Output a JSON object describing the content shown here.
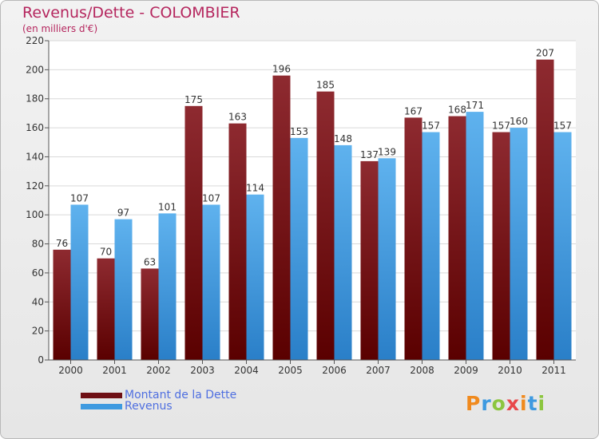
{
  "chart_data": {
    "type": "bar",
    "title": "Revenus/Dette - COLOMBIER",
    "subtitle": "(en milliers d'€)",
    "categories": [
      "2000",
      "2001",
      "2002",
      "2003",
      "2004",
      "2005",
      "2006",
      "2007",
      "2008",
      "2009",
      "2010",
      "2011"
    ],
    "series": [
      {
        "name": "Montant de la Dette",
        "values": [
          76,
          70,
          63,
          175,
          163,
          196,
          185,
          137,
          167,
          168,
          157,
          207
        ],
        "color": "#6e0f14"
      },
      {
        "name": "Revenus",
        "values": [
          107,
          97,
          101,
          107,
          114,
          153,
          148,
          139,
          157,
          171,
          160,
          157
        ],
        "color": "#3e9ae0"
      }
    ],
    "ylim": [
      0,
      220
    ],
    "yticks": [
      0,
      20,
      40,
      60,
      80,
      100,
      120,
      140,
      160,
      180,
      200,
      220
    ],
    "grid": true,
    "legend_position": "bottom-left"
  },
  "logo": {
    "text": "Proxiti",
    "colors": [
      "#f08a1e",
      "#3e9ae0",
      "#8cc63f",
      "#e8484b",
      "#f08a1e",
      "#3e9ae0",
      "#8cc63f"
    ]
  }
}
